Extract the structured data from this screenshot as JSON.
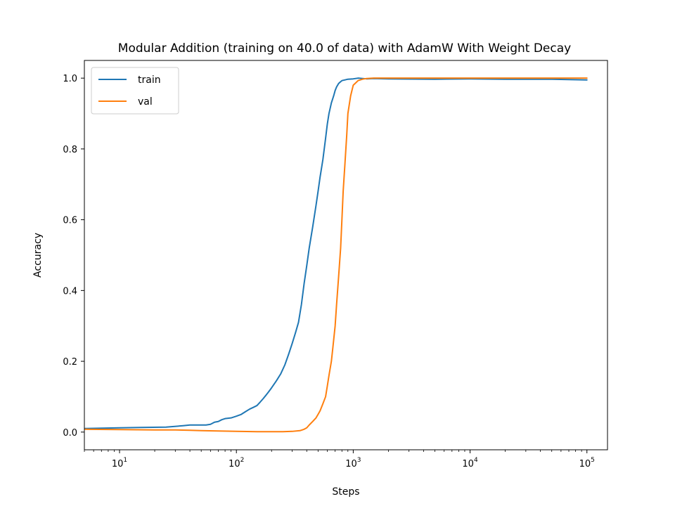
{
  "chart_data": {
    "type": "line",
    "title": "Modular Addition (training on 40.0 of data) with AdamW With Weight Decay",
    "xlabel": "Steps",
    "ylabel": "Accuracy",
    "xscale": "log",
    "xlim": [
      5,
      150000
    ],
    "ylim": [
      -0.05,
      1.05
    ],
    "xticks": [
      10,
      100,
      1000,
      10000,
      100000
    ],
    "xtick_labels": [
      {
        "base": "10",
        "exp": "1"
      },
      {
        "base": "10",
        "exp": "2"
      },
      {
        "base": "10",
        "exp": "3"
      },
      {
        "base": "10",
        "exp": "4"
      },
      {
        "base": "10",
        "exp": "5"
      }
    ],
    "yticks": [
      0.0,
      0.2,
      0.4,
      0.6,
      0.8,
      1.0
    ],
    "ytick_labels": [
      "0.0",
      "0.2",
      "0.4",
      "0.6",
      "0.8",
      "1.0"
    ],
    "grid": false,
    "legend_position": "upper-left",
    "series": [
      {
        "name": "train",
        "color": "#1f77b4",
        "x": [
          5,
          10,
          15,
          25,
          35,
          40,
          50,
          55,
          60,
          65,
          70,
          75,
          80,
          90,
          100,
          110,
          120,
          130,
          140,
          150,
          160,
          170,
          180,
          190,
          200,
          220,
          240,
          260,
          280,
          300,
          320,
          340,
          360,
          380,
          400,
          420,
          450,
          480,
          500,
          520,
          550,
          580,
          600,
          620,
          650,
          680,
          700,
          720,
          750,
          780,
          800,
          850,
          900,
          1000,
          1100,
          1300,
          1500,
          2000,
          5000,
          10000,
          20000,
          50000,
          100000
        ],
        "y": [
          0.01,
          0.012,
          0.013,
          0.014,
          0.018,
          0.02,
          0.02,
          0.02,
          0.022,
          0.028,
          0.03,
          0.035,
          0.038,
          0.04,
          0.045,
          0.05,
          0.058,
          0.065,
          0.07,
          0.075,
          0.085,
          0.095,
          0.105,
          0.115,
          0.125,
          0.145,
          0.165,
          0.19,
          0.22,
          0.25,
          0.28,
          0.31,
          0.36,
          0.42,
          0.47,
          0.52,
          0.58,
          0.64,
          0.68,
          0.72,
          0.77,
          0.83,
          0.87,
          0.9,
          0.93,
          0.95,
          0.965,
          0.975,
          0.985,
          0.99,
          0.993,
          0.995,
          0.997,
          0.998,
          1.0,
          0.998,
          0.999,
          0.998,
          0.997,
          0.998,
          0.997,
          0.997,
          0.995
        ]
      },
      {
        "name": "val",
        "color": "#ff7f0e",
        "x": [
          5,
          10,
          20,
          30,
          40,
          50,
          70,
          100,
          150,
          200,
          250,
          300,
          350,
          380,
          400,
          420,
          450,
          480,
          500,
          520,
          550,
          580,
          600,
          620,
          650,
          670,
          700,
          720,
          750,
          780,
          800,
          820,
          850,
          880,
          900,
          950,
          1000,
          1100,
          1200,
          1300,
          1500,
          2000,
          5000,
          10000,
          50000,
          100000
        ],
        "y": [
          0.008,
          0.007,
          0.006,
          0.006,
          0.005,
          0.004,
          0.003,
          0.002,
          0.001,
          0.001,
          0.001,
          0.002,
          0.004,
          0.008,
          0.012,
          0.02,
          0.03,
          0.04,
          0.05,
          0.06,
          0.08,
          0.1,
          0.13,
          0.16,
          0.2,
          0.24,
          0.3,
          0.36,
          0.44,
          0.52,
          0.6,
          0.68,
          0.76,
          0.84,
          0.9,
          0.95,
          0.98,
          0.993,
          0.997,
          0.999,
          1.0,
          1.0,
          1.0,
          1.0,
          1.0,
          1.0
        ]
      }
    ]
  }
}
